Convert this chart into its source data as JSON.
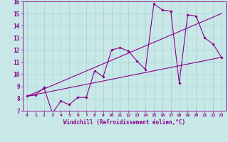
{
  "xlabel": "Windchill (Refroidissement éolien,°C)",
  "bg_color": "#c8e8e8",
  "line_color": "#8b008b",
  "grid_color": "#a8d0d0",
  "xlim": [
    -0.5,
    23.5
  ],
  "ylim": [
    7,
    16
  ],
  "xticks": [
    0,
    1,
    2,
    3,
    4,
    5,
    6,
    7,
    8,
    9,
    10,
    11,
    12,
    13,
    14,
    15,
    16,
    17,
    18,
    19,
    20,
    21,
    22,
    23
  ],
  "yticks": [
    7,
    8,
    9,
    10,
    11,
    12,
    13,
    14,
    15,
    16
  ],
  "scatter_x": [
    0,
    1,
    2,
    3,
    4,
    5,
    6,
    7,
    8,
    9,
    10,
    11,
    12,
    13,
    14,
    15,
    16,
    17,
    18,
    19,
    20,
    21,
    22,
    23
  ],
  "scatter_y": [
    8.2,
    8.3,
    8.9,
    6.8,
    7.8,
    7.5,
    8.1,
    8.1,
    10.3,
    9.8,
    12.0,
    12.2,
    11.9,
    11.1,
    10.4,
    15.8,
    15.3,
    15.2,
    9.3,
    14.9,
    14.8,
    13.0,
    12.5,
    11.4
  ],
  "line1_x": [
    0,
    23
  ],
  "line1_y": [
    8.2,
    11.4
  ],
  "line2_x": [
    0,
    23
  ],
  "line2_y": [
    8.2,
    15.0
  ]
}
